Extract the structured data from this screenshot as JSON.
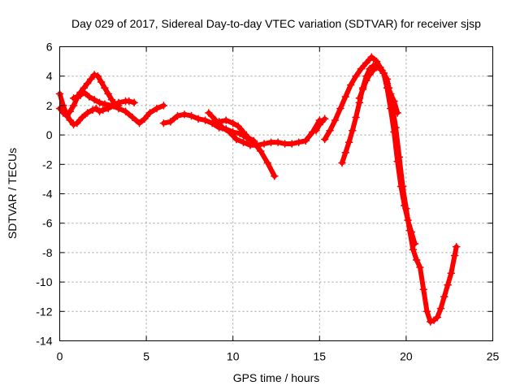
{
  "chart_data": {
    "type": "scatter",
    "title": "Day 029 of 2017, Sidereal Day-to-day VTEC variation (SDTVAR) for receiver sjsp",
    "xlabel": "GPS time / hours",
    "ylabel": "SDTVAR / TECUs",
    "xlim": [
      0,
      25
    ],
    "ylim": [
      -14,
      6
    ],
    "xticks": [
      "0",
      "5",
      "10",
      "15",
      "20",
      "25"
    ],
    "yticks": [
      "-14",
      "-12",
      "-10",
      "-8",
      "-6",
      "-4",
      "-2",
      "0",
      "2",
      "4",
      "6"
    ],
    "grid": true,
    "marker": "plus",
    "color": "#ff0000",
    "series": [
      {
        "x": [
          0.0,
          0.2,
          0.4,
          0.6,
          0.8,
          1.0,
          1.3,
          1.6,
          1.9,
          2.1,
          2.3,
          2.5,
          2.8,
          3.1,
          3.4,
          3.8,
          4.0,
          4.3
        ],
        "y": [
          2.8,
          2.0,
          1.4,
          1.0,
          0.7,
          0.8,
          1.2,
          1.5,
          1.7,
          1.8,
          1.6,
          1.7,
          1.8,
          2.0,
          2.2,
          2.3,
          2.3,
          2.2
        ]
      },
      {
        "x": [
          0.0,
          0.2,
          0.4,
          0.6,
          0.8,
          1.0,
          1.2,
          1.4,
          1.6,
          1.8,
          2.0,
          2.2,
          2.4,
          2.6,
          2.8,
          3.0,
          3.2,
          3.4
        ],
        "y": [
          1.8,
          1.5,
          1.3,
          1.6,
          2.0,
          2.5,
          2.9,
          3.2,
          3.5,
          3.8,
          4.1,
          4.0,
          3.6,
          3.2,
          2.8,
          2.4,
          2.1,
          2.0
        ]
      },
      {
        "x": [
          0.8,
          1.0,
          1.2,
          1.4,
          1.7,
          2.0,
          2.3,
          2.6,
          3.0,
          3.4,
          3.8,
          4.2,
          4.6,
          4.9,
          5.2,
          5.6,
          6.0
        ],
        "y": [
          2.5,
          2.6,
          2.7,
          2.9,
          2.6,
          2.4,
          2.2,
          2.1,
          2.0,
          1.8,
          1.6,
          1.2,
          0.8,
          1.1,
          1.5,
          1.8,
          2.0
        ]
      },
      {
        "x": [
          6.0,
          6.4,
          6.8,
          7.2,
          7.6,
          8.0,
          8.4,
          8.8,
          9.2,
          9.6,
          10.0,
          10.4,
          10.8,
          11.2,
          11.6,
          12.0,
          12.4
        ],
        "y": [
          0.8,
          0.9,
          1.3,
          1.4,
          1.3,
          1.1,
          1.0,
          0.8,
          0.5,
          0.4,
          0.2,
          0.1,
          -0.2,
          -0.5,
          -1.1,
          -1.9,
          -2.8
        ]
      },
      {
        "x": [
          8.6,
          9.0,
          9.4,
          9.8,
          10.2,
          10.6,
          11.0,
          11.4,
          11.8,
          12.2,
          12.6,
          13.0,
          13.4,
          13.8,
          14.2,
          14.6,
          15.0
        ],
        "y": [
          1.5,
          1.0,
          0.5,
          0.2,
          -0.3,
          -0.5,
          -0.7,
          -0.7,
          -0.6,
          -0.5,
          -0.5,
          -0.6,
          -0.6,
          -0.5,
          -0.4,
          0.2,
          1.0
        ]
      },
      {
        "x": [
          9.2,
          9.6,
          10.0,
          10.3,
          10.6,
          10.9,
          11.2
        ],
        "y": [
          0.9,
          1.0,
          0.8,
          0.6,
          0.2,
          -0.2,
          -0.4
        ]
      },
      {
        "x": [
          15.3,
          15.6,
          15.9,
          16.2,
          16.5,
          16.8,
          17.1,
          17.4,
          17.7,
          18.0,
          18.3,
          18.6,
          18.9,
          19.0,
          19.2,
          19.4,
          19.6,
          19.8,
          20.0,
          20.2,
          20.4,
          20.6,
          20.8,
          21.0,
          21.2,
          21.4,
          21.6,
          21.8,
          22.0,
          22.2,
          22.4,
          22.6,
          22.8,
          22.9
        ],
        "y": [
          -0.3,
          0.3,
          1.0,
          1.8,
          2.6,
          3.4,
          4.0,
          4.5,
          4.9,
          5.3,
          5.0,
          4.4,
          3.8,
          3.2,
          2.0,
          0.5,
          -1.5,
          -3.5,
          -5.0,
          -6.5,
          -7.8,
          -8.5,
          -9.0,
          -10.5,
          -12.0,
          -12.7,
          -12.6,
          -12.4,
          -11.8,
          -11.0,
          -10.2,
          -9.4,
          -8.2,
          -7.6
        ]
      },
      {
        "x": [
          14.8,
          15.0,
          15.3
        ],
        "y": [
          0.3,
          0.7,
          1.1
        ]
      },
      {
        "x": [
          16.3,
          16.5,
          16.7,
          16.9,
          17.1,
          17.3,
          17.5,
          17.7,
          17.9,
          18.1,
          18.3,
          18.5,
          18.7,
          18.9,
          19.1,
          19.3,
          19.5,
          19.7,
          19.9,
          20.1,
          20.3,
          20.5
        ],
        "y": [
          -1.9,
          -1.2,
          -0.5,
          0.3,
          1.2,
          2.2,
          3.2,
          4.0,
          4.5,
          4.7,
          4.8,
          4.6,
          4.2,
          3.2,
          1.8,
          0.2,
          -1.8,
          -3.5,
          -4.8,
          -5.8,
          -6.6,
          -7.4
        ]
      },
      {
        "x": [
          17.3,
          17.5,
          17.7,
          17.9,
          18.1,
          18.3,
          18.5,
          18.7,
          18.9,
          19.1,
          19.3,
          19.5
        ],
        "y": [
          2.5,
          3.1,
          3.7,
          4.1,
          4.4,
          4.6,
          4.5,
          4.2,
          3.5,
          2.8,
          2.3,
          1.5
        ]
      }
    ]
  }
}
